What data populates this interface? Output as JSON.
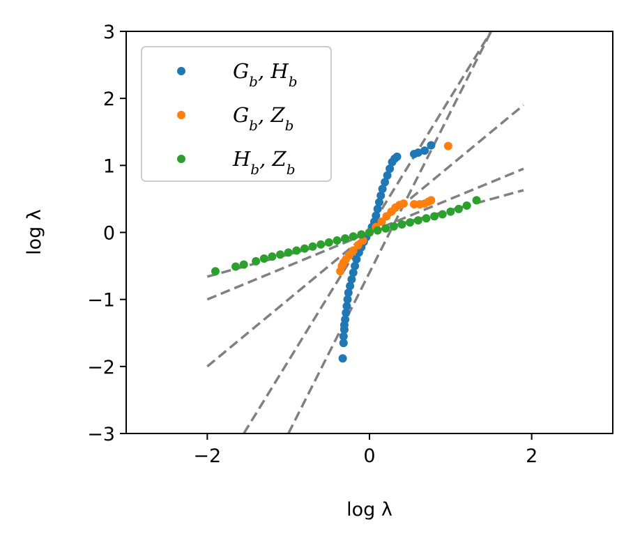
{
  "chart_data": {
    "type": "scatter",
    "title": "",
    "xlabel": "log λ",
    "ylabel": "log λ",
    "xlim": [
      -3,
      3
    ],
    "ylim": [
      -3,
      3
    ],
    "xticks": [
      -2,
      0,
      2
    ],
    "xtick_labels": [
      "−2",
      "0",
      "2"
    ],
    "yticks": [
      -3,
      -2,
      -1,
      0,
      1,
      2,
      3
    ],
    "ytick_labels": [
      "−3",
      "−2",
      "−1",
      "0",
      "1",
      "2",
      "3"
    ],
    "grid": false,
    "legend_position": "top-left",
    "series": [
      {
        "name": "G_b, H_b",
        "label_html": "G<tspan baseline-shift='sub' font-size='20'>b</tspan>, H<tspan baseline-shift='sub' font-size='20'>b</tspan>",
        "color": "#1f77b4",
        "points": [
          [
            -0.33,
            -1.88
          ],
          [
            -0.32,
            -1.65
          ],
          [
            -0.32,
            -1.55
          ],
          [
            -0.31,
            -1.45
          ],
          [
            -0.31,
            -1.38
          ],
          [
            -0.3,
            -1.3
          ],
          [
            -0.29,
            -1.2
          ],
          [
            -0.28,
            -1.1
          ],
          [
            -0.27,
            -1.0
          ],
          [
            -0.26,
            -0.9
          ],
          [
            -0.24,
            -0.8
          ],
          [
            -0.22,
            -0.7
          ],
          [
            -0.2,
            -0.6
          ],
          [
            -0.18,
            -0.5
          ],
          [
            -0.16,
            -0.4
          ],
          [
            -0.13,
            -0.3
          ],
          [
            -0.1,
            -0.22
          ],
          [
            -0.07,
            -0.14
          ],
          [
            -0.04,
            -0.07
          ],
          [
            0.0,
            0.0
          ],
          [
            0.03,
            0.08
          ],
          [
            0.06,
            0.16
          ],
          [
            0.08,
            0.25
          ],
          [
            0.1,
            0.35
          ],
          [
            0.12,
            0.45
          ],
          [
            0.14,
            0.55
          ],
          [
            0.16,
            0.65
          ],
          [
            0.19,
            0.75
          ],
          [
            0.22,
            0.85
          ],
          [
            0.25,
            0.95
          ],
          [
            0.28,
            1.05
          ],
          [
            0.31,
            1.1
          ],
          [
            0.34,
            1.13
          ],
          [
            0.55,
            1.17
          ],
          [
            0.6,
            1.19
          ],
          [
            0.68,
            1.22
          ],
          [
            0.76,
            1.3
          ]
        ]
      },
      {
        "name": "G_b, Z_b",
        "label_html": "G<tspan baseline-shift='sub' font-size='20'>b</tspan>, Z<tspan baseline-shift='sub' font-size='20'>b</tspan>",
        "color": "#ff7f0e",
        "points": [
          [
            -0.36,
            -0.58
          ],
          [
            -0.34,
            -0.5
          ],
          [
            -0.32,
            -0.45
          ],
          [
            -0.29,
            -0.4
          ],
          [
            -0.25,
            -0.34
          ],
          [
            -0.2,
            -0.27
          ],
          [
            -0.14,
            -0.19
          ],
          [
            -0.08,
            -0.12
          ],
          [
            0.0,
            0.0
          ],
          [
            0.08,
            0.08
          ],
          [
            0.15,
            0.16
          ],
          [
            0.21,
            0.24
          ],
          [
            0.27,
            0.31
          ],
          [
            0.32,
            0.37
          ],
          [
            0.37,
            0.41
          ],
          [
            0.42,
            0.43
          ],
          [
            0.55,
            0.42
          ],
          [
            0.62,
            0.42
          ],
          [
            0.68,
            0.43
          ],
          [
            0.73,
            0.46
          ],
          [
            0.76,
            0.48
          ],
          [
            0.97,
            1.29
          ]
        ]
      },
      {
        "name": "H_b, Z_b",
        "label_html": "H<tspan baseline-shift='sub' font-size='20'>b</tspan>, Z<tspan baseline-shift='sub' font-size='20'>b</tspan>",
        "color": "#2ca02c",
        "points": [
          [
            -1.9,
            -0.58
          ],
          [
            -1.65,
            -0.51
          ],
          [
            -1.55,
            -0.48
          ],
          [
            -1.4,
            -0.43
          ],
          [
            -1.3,
            -0.39
          ],
          [
            -1.2,
            -0.36
          ],
          [
            -1.1,
            -0.33
          ],
          [
            -1.0,
            -0.3
          ],
          [
            -0.9,
            -0.27
          ],
          [
            -0.8,
            -0.24
          ],
          [
            -0.7,
            -0.21
          ],
          [
            -0.6,
            -0.18
          ],
          [
            -0.5,
            -0.15
          ],
          [
            -0.4,
            -0.12
          ],
          [
            -0.3,
            -0.09
          ],
          [
            -0.2,
            -0.06
          ],
          [
            -0.1,
            -0.03
          ],
          [
            0.0,
            0.0
          ],
          [
            0.1,
            0.03
          ],
          [
            0.2,
            0.06
          ],
          [
            0.3,
            0.09
          ],
          [
            0.4,
            0.12
          ],
          [
            0.5,
            0.15
          ],
          [
            0.6,
            0.18
          ],
          [
            0.7,
            0.21
          ],
          [
            0.8,
            0.24
          ],
          [
            0.9,
            0.27
          ],
          [
            1.0,
            0.31
          ],
          [
            1.1,
            0.35
          ],
          [
            1.2,
            0.4
          ],
          [
            1.32,
            0.48
          ]
        ]
      }
    ],
    "reference_lines": [
      {
        "color": "#808080",
        "x": [
          -1.55,
          1.5
        ],
        "y": [
          -3.0,
          3.0
        ]
      },
      {
        "color": "#808080",
        "x": [
          -1.0,
          1.5
        ],
        "y": [
          -3.0,
          3.0
        ]
      },
      {
        "color": "#808080",
        "x": [
          -2.0,
          1.9
        ],
        "y": [
          -2.0,
          1.9
        ]
      },
      {
        "color": "#808080",
        "x": [
          -2.0,
          1.9
        ],
        "y": [
          -1.0,
          0.95
        ]
      },
      {
        "color": "#808080",
        "x": [
          -2.0,
          1.9
        ],
        "y": [
          -0.66,
          0.63
        ]
      }
    ]
  }
}
